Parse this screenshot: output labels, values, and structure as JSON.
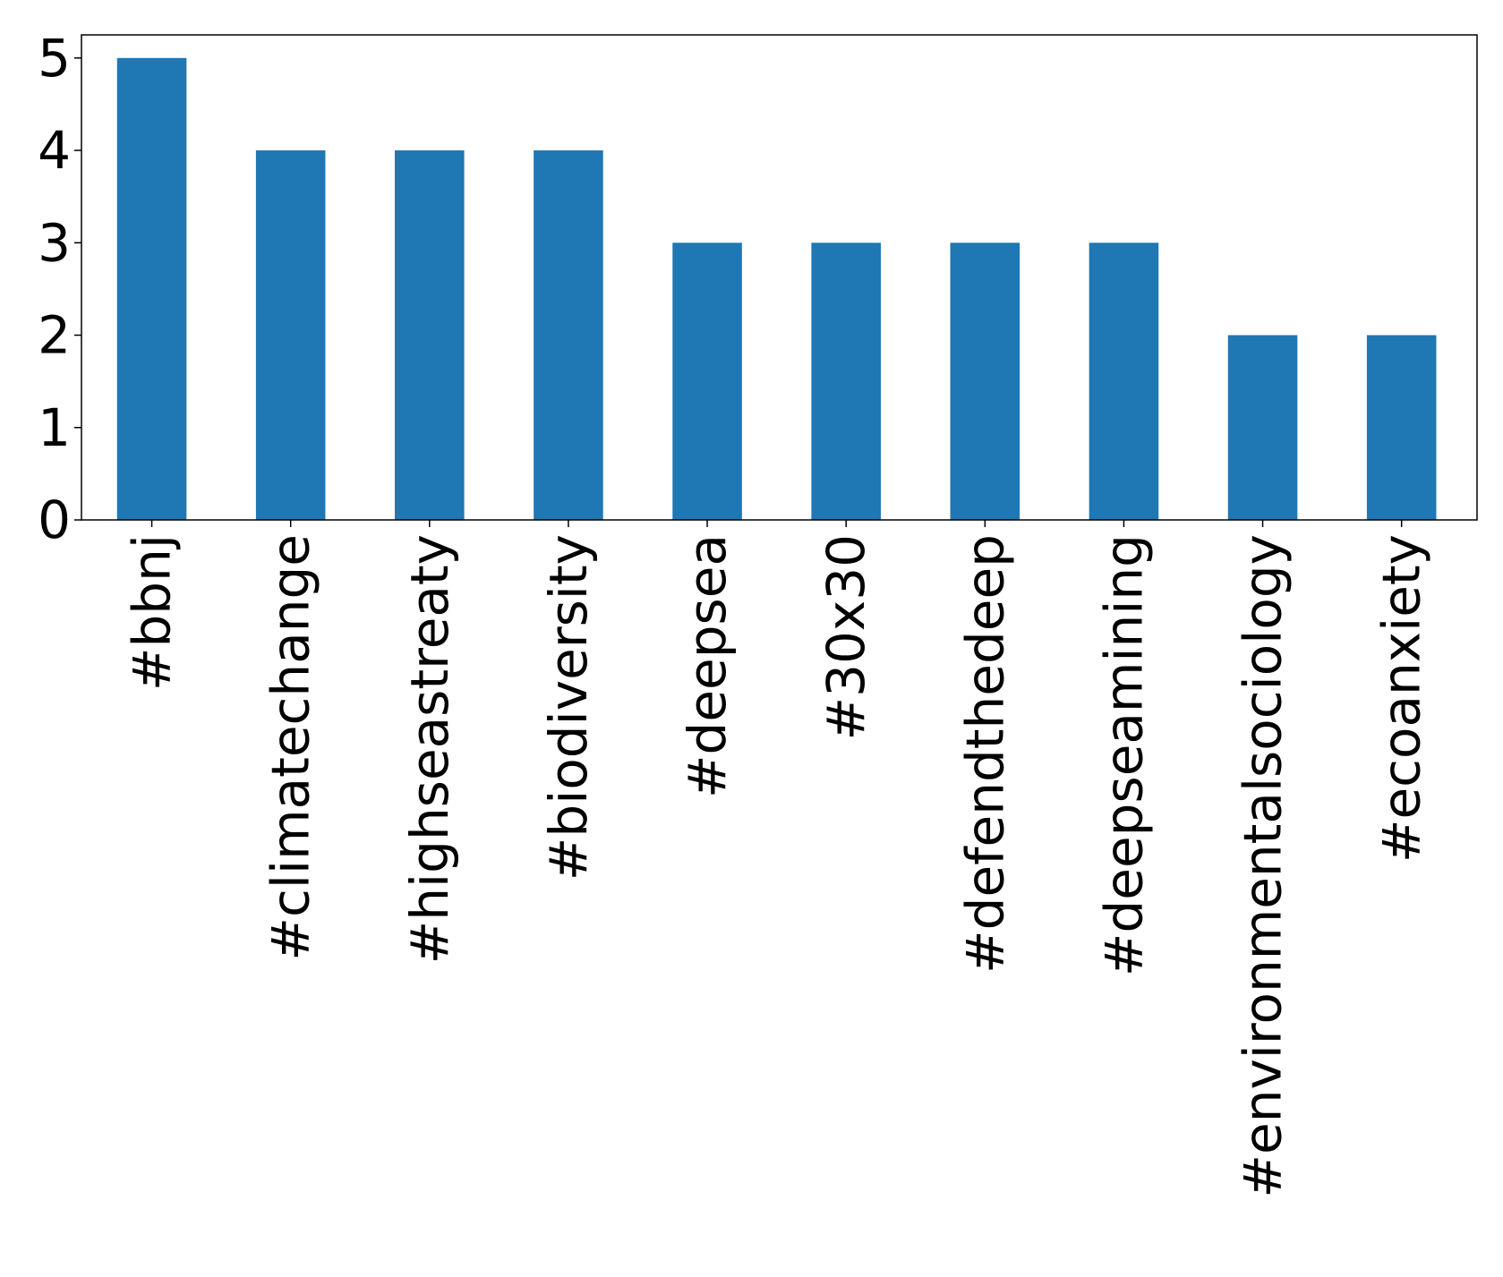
{
  "chart_data": {
    "type": "bar",
    "title": "",
    "xlabel": "",
    "ylabel": "",
    "categories": [
      "#bbnj",
      "#climatechange",
      "#highseastreaty",
      "#biodiversity",
      "#deepsea",
      "#30x30",
      "#defendthedeep",
      "#deepseamining",
      "#environmentalsociology",
      "#ecoanxiety"
    ],
    "values": [
      5,
      4,
      4,
      4,
      3,
      3,
      3,
      3,
      2,
      2
    ],
    "ylim": [
      0,
      5.25
    ],
    "yticks": [
      0,
      1,
      2,
      3,
      4,
      5
    ],
    "grid": false,
    "legend": "none",
    "bar_color": "#1f77b4"
  }
}
